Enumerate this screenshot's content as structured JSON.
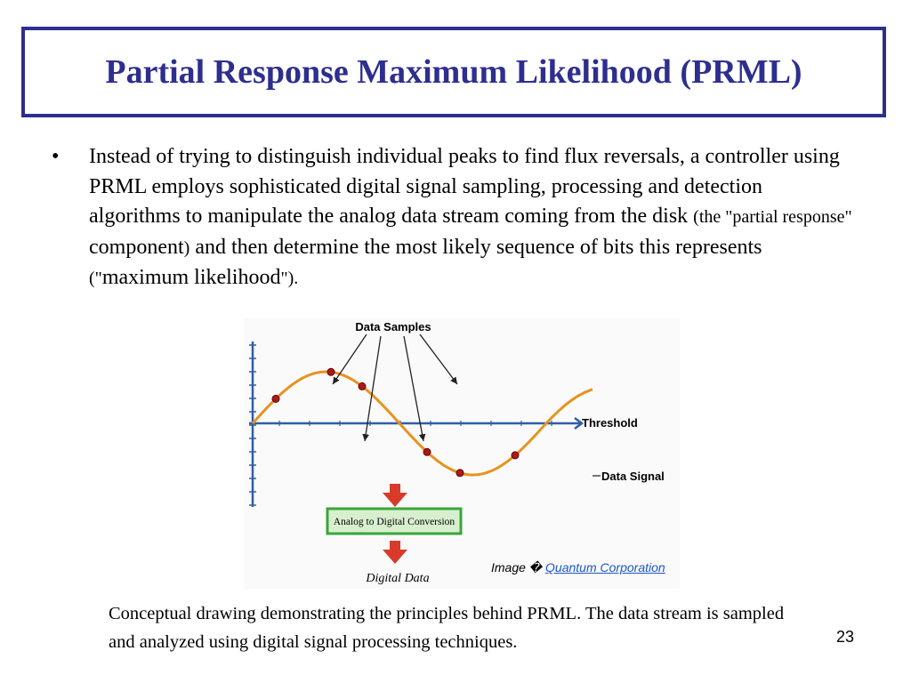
{
  "slide": {
    "title": "Partial Response Maximum Likelihood (PRML)",
    "bullet_marker": "•",
    "bullet": {
      "part1": "Instead of trying to distinguish individual peaks to find flux reversals, a controller using PRML employs sophisticated digital signal sampling, processing and detection algorithms to manipulate the analog data stream coming from the disk ",
      "part2": "(the \"partial response\" ",
      "part3": "component",
      "part4": ")",
      "part5": " and then determine the most likely sequence of bits this represents ",
      "part6": "(\"",
      "part7": "maximum likelihood",
      "part8": "\").",
      "part9": ""
    },
    "figure": {
      "label_samples": "Data Samples",
      "label_threshold": "Threshold",
      "label_signal": "Data Signal",
      "label_conversion": "Analog to Digital Conversion",
      "label_output": "Digital Data",
      "colors": {
        "signal": "#e8921e",
        "axis": "#2f5fa5",
        "point": "#b01818",
        "box_border": "#3aa63a",
        "box_fill": "#d8efcf",
        "arrow": "#d83b2a"
      }
    },
    "credit": {
      "prefix": "Image � ",
      "link": "Quantum Corporation"
    },
    "caption": "Conceptual drawing demonstrating the principles behind PRML. The data stream is sampled and analyzed using digital signal processing techniques.",
    "page_number": "23"
  }
}
